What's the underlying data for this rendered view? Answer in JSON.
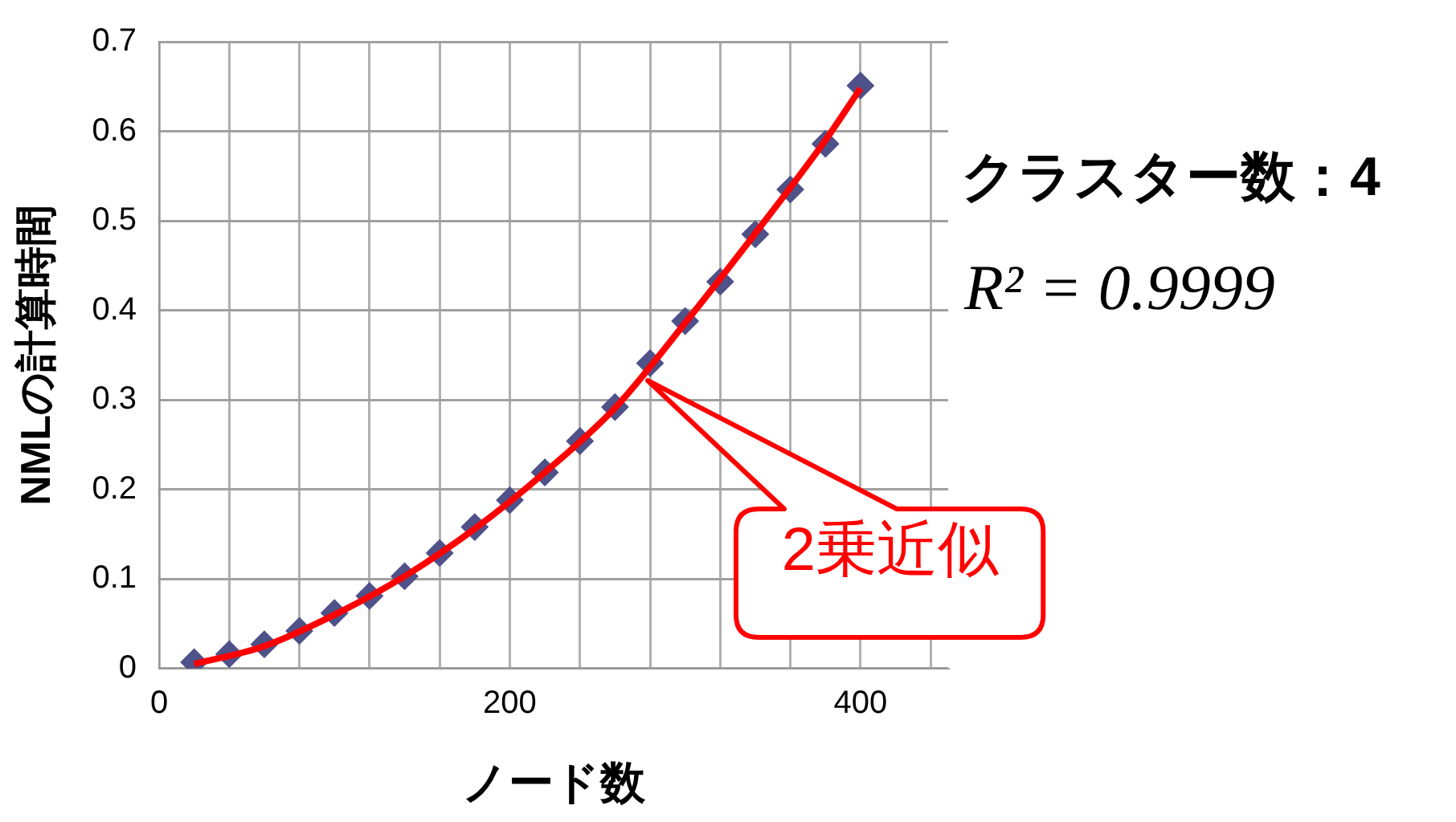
{
  "chart_data": {
    "type": "scatter",
    "xlabel": "ノード数",
    "ylabel": "NMLの計算時間",
    "x": [
      20,
      40,
      60,
      80,
      100,
      120,
      140,
      160,
      180,
      200,
      220,
      240,
      260,
      280,
      300,
      320,
      340,
      360,
      380,
      400
    ],
    "series": [
      {
        "color": "#4f5189",
        "marker": "diamond",
        "values": [
          0.007,
          0.016,
          0.027,
          0.042,
          0.062,
          0.081,
          0.103,
          0.129,
          0.158,
          0.188,
          0.219,
          0.254,
          0.292,
          0.341,
          0.388,
          0.432,
          0.485,
          0.535,
          0.586,
          0.651
        ]
      },
      {
        "type": "line",
        "color": "#ff0000",
        "marker": "none",
        "line_style": "solid",
        "x": [
          20,
          60,
          100,
          140,
          180,
          220,
          260,
          300,
          340,
          380,
          400
        ],
        "values": [
          0.005,
          0.025,
          0.06,
          0.103,
          0.156,
          0.219,
          0.291,
          0.386,
          0.486,
          0.59,
          0.648
        ]
      }
    ],
    "xlim": [
      0,
      450
    ],
    "xticks": [
      0,
      {
        "value": 40,
        "label": null
      },
      {
        "value": 80,
        "label": null
      },
      {
        "value": 120,
        "label": null
      },
      {
        "value": 160,
        "label": null
      },
      200,
      {
        "value": 240,
        "label": null
      },
      {
        "value": 280,
        "label": null
      },
      {
        "value": 320,
        "label": null
      },
      {
        "value": 360,
        "label": null
      },
      400,
      {
        "value": 440,
        "label": null
      }
    ],
    "ylim": [
      0,
      0.7
    ],
    "yticks": [
      0,
      0.1,
      0.2,
      0.3,
      0.4,
      0.5,
      0.6,
      0.7
    ],
    "grid": true,
    "legend": false,
    "annotations": [
      "クラスター数：4",
      "R² = 0.9999",
      "2乗近似"
    ]
  }
}
